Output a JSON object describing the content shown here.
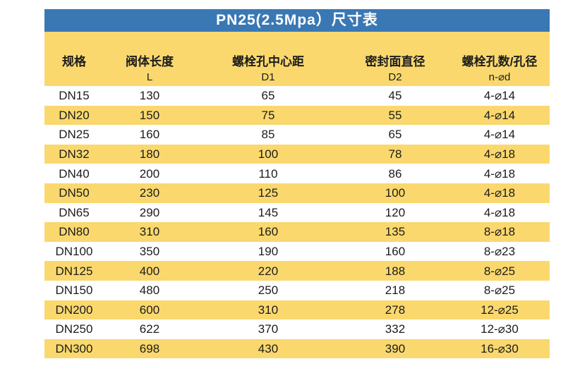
{
  "title": "PN25(2.5Mpa）尺寸表",
  "colors": {
    "header_blue": "#3a78b4",
    "band_yellow": "#fad86e",
    "text_dark": "#1c1c1c",
    "title_text": "#ffffff",
    "row_white": "#ffffff"
  },
  "table": {
    "columns": [
      {
        "label": "规格",
        "symbol": ""
      },
      {
        "label": "阀体长度",
        "symbol": "L"
      },
      {
        "label": "螺栓孔中心距",
        "symbol": "D1"
      },
      {
        "label": "密封面直径",
        "symbol": "D2"
      },
      {
        "label": "螺栓孔数/孔径",
        "symbol": "n-⌀d"
      }
    ],
    "rows": [
      [
        "DN15",
        "130",
        "65",
        "45",
        "4-⌀14"
      ],
      [
        "DN20",
        "150",
        "75",
        "55",
        "4-⌀14"
      ],
      [
        "DN25",
        "160",
        "85",
        "65",
        "4-⌀14"
      ],
      [
        "DN32",
        "180",
        "100",
        "78",
        "4-⌀18"
      ],
      [
        "DN40",
        "200",
        "110",
        "86",
        "4-⌀18"
      ],
      [
        "DN50",
        "230",
        "125",
        "100",
        "4-⌀18"
      ],
      [
        "DN65",
        "290",
        "145",
        "120",
        "4-⌀18"
      ],
      [
        "DN80",
        "310",
        "160",
        "135",
        "8-⌀18"
      ],
      [
        "DN100",
        "350",
        "190",
        "160",
        "8-⌀23"
      ],
      [
        "DN125",
        "400",
        "220",
        "188",
        "8-⌀25"
      ],
      [
        "DN150",
        "480",
        "250",
        "218",
        "8-⌀25"
      ],
      [
        "DN200",
        "600",
        "310",
        "278",
        "12-⌀25"
      ],
      [
        "DN250",
        "622",
        "370",
        "332",
        "12-⌀30"
      ],
      [
        "DN300",
        "698",
        "430",
        "390",
        "16-⌀30"
      ]
    ]
  },
  "chart_data": {
    "type": "table",
    "title": "PN25(2.5Mpa）尺寸表",
    "columns": [
      "规格",
      "阀体长度 L",
      "螺栓孔中心距 D1",
      "密封面直径 D2",
      "螺栓孔数/孔径 n-⌀d"
    ],
    "rows": [
      [
        "DN15",
        130,
        65,
        45,
        "4-⌀14"
      ],
      [
        "DN20",
        150,
        75,
        55,
        "4-⌀14"
      ],
      [
        "DN25",
        160,
        85,
        65,
        "4-⌀14"
      ],
      [
        "DN32",
        180,
        100,
        78,
        "4-⌀18"
      ],
      [
        "DN40",
        200,
        110,
        86,
        "4-⌀18"
      ],
      [
        "DN50",
        230,
        125,
        100,
        "4-⌀18"
      ],
      [
        "DN65",
        290,
        145,
        120,
        "4-⌀18"
      ],
      [
        "DN80",
        310,
        160,
        135,
        "8-⌀18"
      ],
      [
        "DN100",
        350,
        190,
        160,
        "8-⌀23"
      ],
      [
        "DN125",
        400,
        220,
        188,
        "8-⌀25"
      ],
      [
        "DN150",
        480,
        250,
        218,
        "8-⌀25"
      ],
      [
        "DN200",
        600,
        310,
        278,
        "12-⌀25"
      ],
      [
        "DN250",
        622,
        370,
        332,
        "12-⌀30"
      ],
      [
        "DN300",
        698,
        430,
        390,
        "16-⌀30"
      ]
    ]
  }
}
